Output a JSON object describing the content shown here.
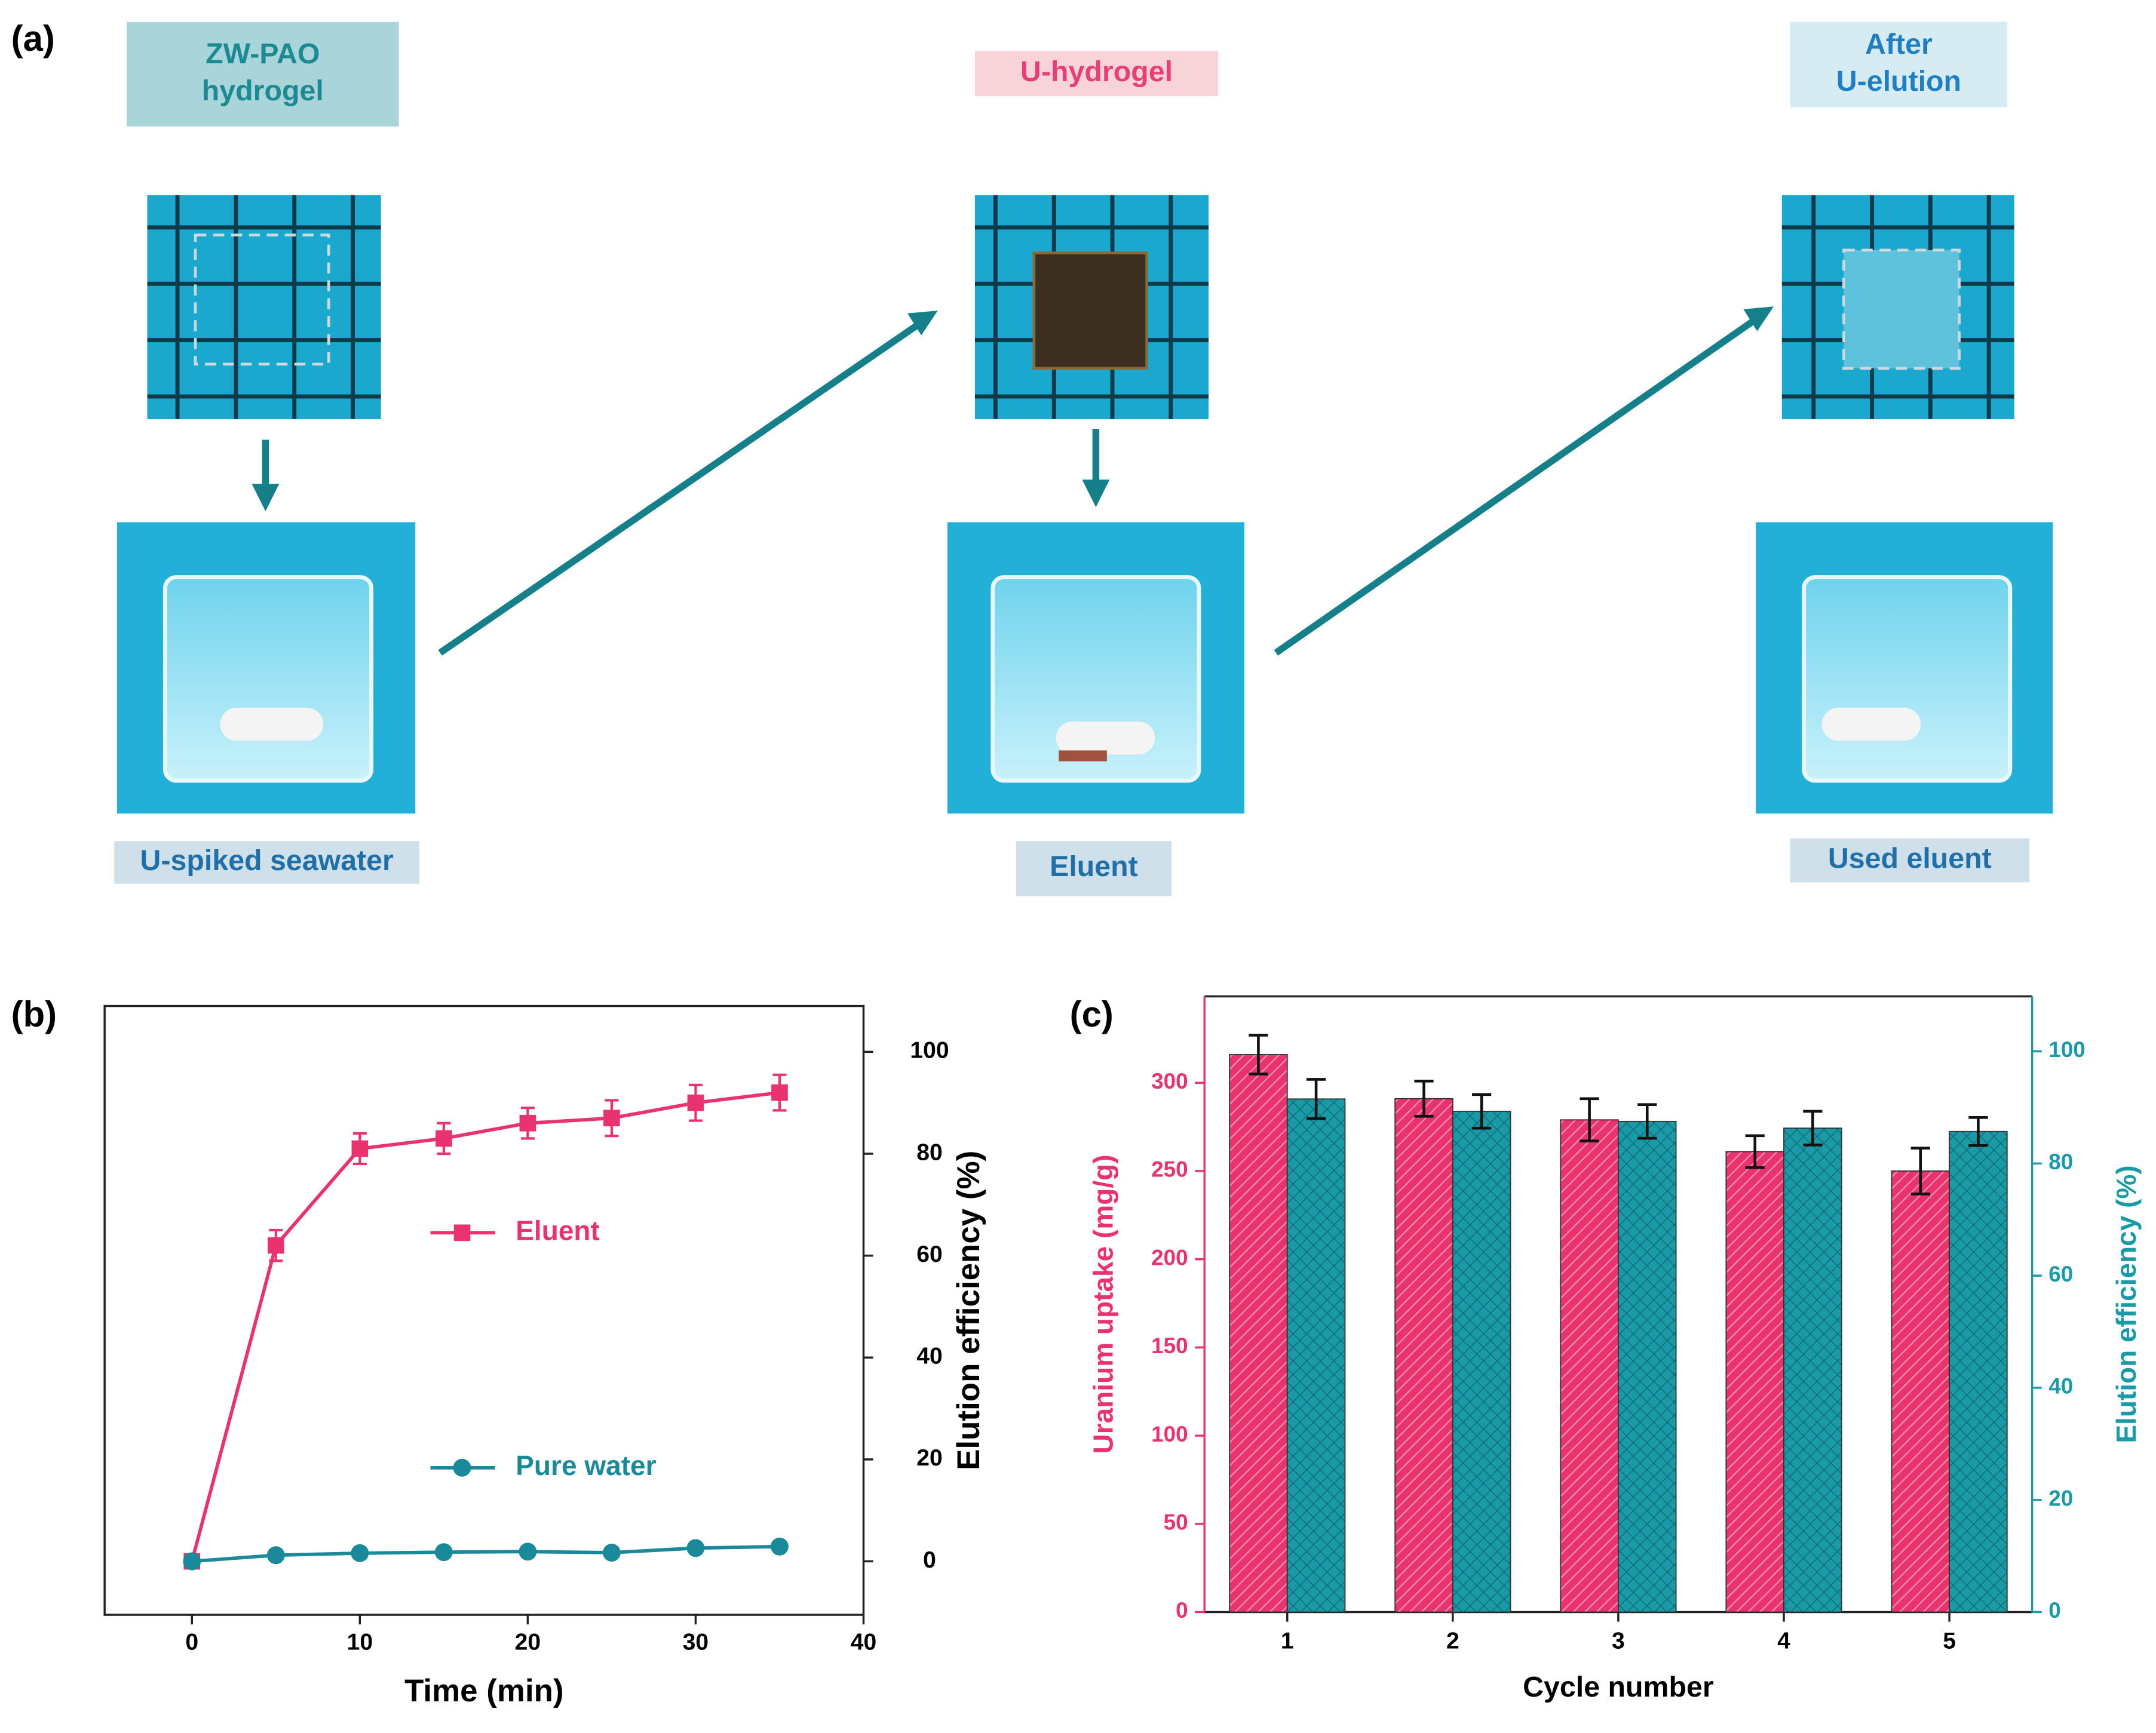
{
  "panel_labels": [
    "(a)",
    "(b)",
    "(c)"
  ],
  "panel_a": {
    "top_labels": [
      {
        "text": [
          "ZW-PAO",
          "hydrogel"
        ]
      },
      {
        "text": [
          "U-hydrogel"
        ]
      },
      {
        "text": [
          "After",
          "U-elution"
        ]
      }
    ],
    "bottom_labels": [
      "U-spiked seawater",
      "Eluent",
      "Used eluent"
    ]
  },
  "chart_data": [
    {
      "type": "line",
      "xlabel": "Time (min)",
      "ylabel": "Elution efficiency (%)",
      "x": [
        0,
        5,
        10,
        15,
        20,
        25,
        30,
        35
      ],
      "series": [
        {
          "name": "Eluent",
          "color": "#e8336f",
          "marker": "square",
          "values": [
            0,
            62,
            81,
            83,
            86,
            87,
            90,
            92
          ],
          "errors": [
            1,
            3,
            3,
            3,
            3,
            3.5,
            3.5,
            3.5
          ]
        },
        {
          "name": "Pure water",
          "color": "#1a8a9a",
          "marker": "circle",
          "values": [
            0,
            1.2,
            1.6,
            1.8,
            1.9,
            1.7,
            2.6,
            2.9
          ],
          "errors": [
            0.5,
            0.5,
            0.5,
            0.5,
            0.5,
            0.5,
            0.5,
            0.5
          ]
        }
      ],
      "xlim": [
        -5.2,
        40
      ],
      "xticks": [
        0,
        10,
        20,
        30,
        40
      ],
      "ylim": [
        -10.5,
        109
      ],
      "yticks": [
        0,
        20,
        40,
        60,
        80,
        100
      ]
    },
    {
      "type": "bar",
      "xlabel": "Cycle number",
      "ylabel": "Uranium uptake (mg/g)",
      "y2label": "Elution efficiency (%)",
      "categories": [
        "1",
        "2",
        "3",
        "4",
        "5"
      ],
      "series": [
        {
          "color": "#e8336f",
          "hatch": "diagonal",
          "values": [
            316,
            291,
            279,
            261,
            250
          ],
          "errors": [
            11,
            10,
            12,
            9,
            13
          ]
        },
        {
          "color": "#1a9aa6",
          "hatch": "cross",
          "axis": "y2",
          "values": [
            91.5,
            89.3,
            87.5,
            86.3,
            85.7
          ],
          "errors": [
            3.5,
            3,
            3,
            3,
            2.5
          ]
        }
      ],
      "ylim": [
        0,
        349
      ],
      "yticks": [
        0,
        50,
        100,
        150,
        200,
        250,
        300
      ],
      "y2lim": [
        0,
        109.8
      ],
      "y2ticks": [
        0,
        20,
        40,
        60,
        80,
        100
      ]
    }
  ]
}
